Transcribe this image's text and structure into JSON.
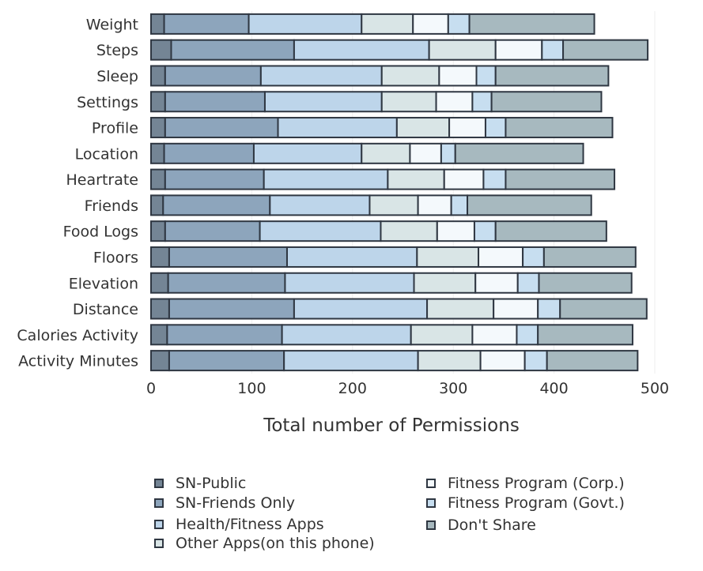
{
  "chart_data": {
    "type": "bar",
    "orientation": "horizontal",
    "stacked": true,
    "title": "",
    "xlabel": "Total number of Permissions",
    "ylabel": "",
    "xlim": [
      0,
      500
    ],
    "x_ticks": [
      0,
      100,
      200,
      300,
      400,
      500
    ],
    "grid": true,
    "legend_position": "bottom",
    "categories": [
      "Weight",
      "Steps",
      "Sleep",
      "Settings",
      "Profile",
      "Location",
      "Heartrate",
      "Friends",
      "Food Logs",
      "Floors",
      "Elevation",
      "Distance",
      "Calories Activity",
      "Activity Minutes"
    ],
    "series": [
      {
        "name": "SN-Public",
        "color": "#748595",
        "values": [
          13,
          20,
          14,
          14,
          14,
          13,
          14,
          12,
          14,
          18,
          17,
          18,
          16,
          18
        ]
      },
      {
        "name": "SN-Friends Only",
        "color": "#8da5bc",
        "values": [
          84,
          122,
          95,
          99,
          112,
          89,
          98,
          106,
          94,
          117,
          116,
          124,
          114,
          114
        ]
      },
      {
        "name": "Health/Fitness Apps",
        "color": "#bdd5ea",
        "values": [
          112,
          134,
          120,
          116,
          118,
          107,
          123,
          99,
          120,
          129,
          128,
          132,
          128,
          133
        ]
      },
      {
        "name": "Other Apps(on this phone)",
        "color": "#d9e5e6",
        "values": [
          51,
          66,
          57,
          54,
          52,
          48,
          56,
          48,
          56,
          61,
          61,
          66,
          61,
          62
        ]
      },
      {
        "name": "Fitness Program (Corp.)",
        "color": "#f4f9fc",
        "values": [
          35,
          46,
          37,
          36,
          36,
          31,
          39,
          33,
          37,
          44,
          42,
          44,
          44,
          44
        ]
      },
      {
        "name": "Fitness Program (Govt.)",
        "color": "#c7def0",
        "values": [
          21,
          21,
          19,
          19,
          20,
          14,
          22,
          16,
          21,
          21,
          21,
          22,
          21,
          22
        ]
      },
      {
        "name": "Don't Share",
        "color": "#a7b9bf",
        "values": [
          124,
          84,
          112,
          109,
          106,
          127,
          108,
          123,
          110,
          91,
          92,
          86,
          94,
          90
        ]
      }
    ]
  }
}
